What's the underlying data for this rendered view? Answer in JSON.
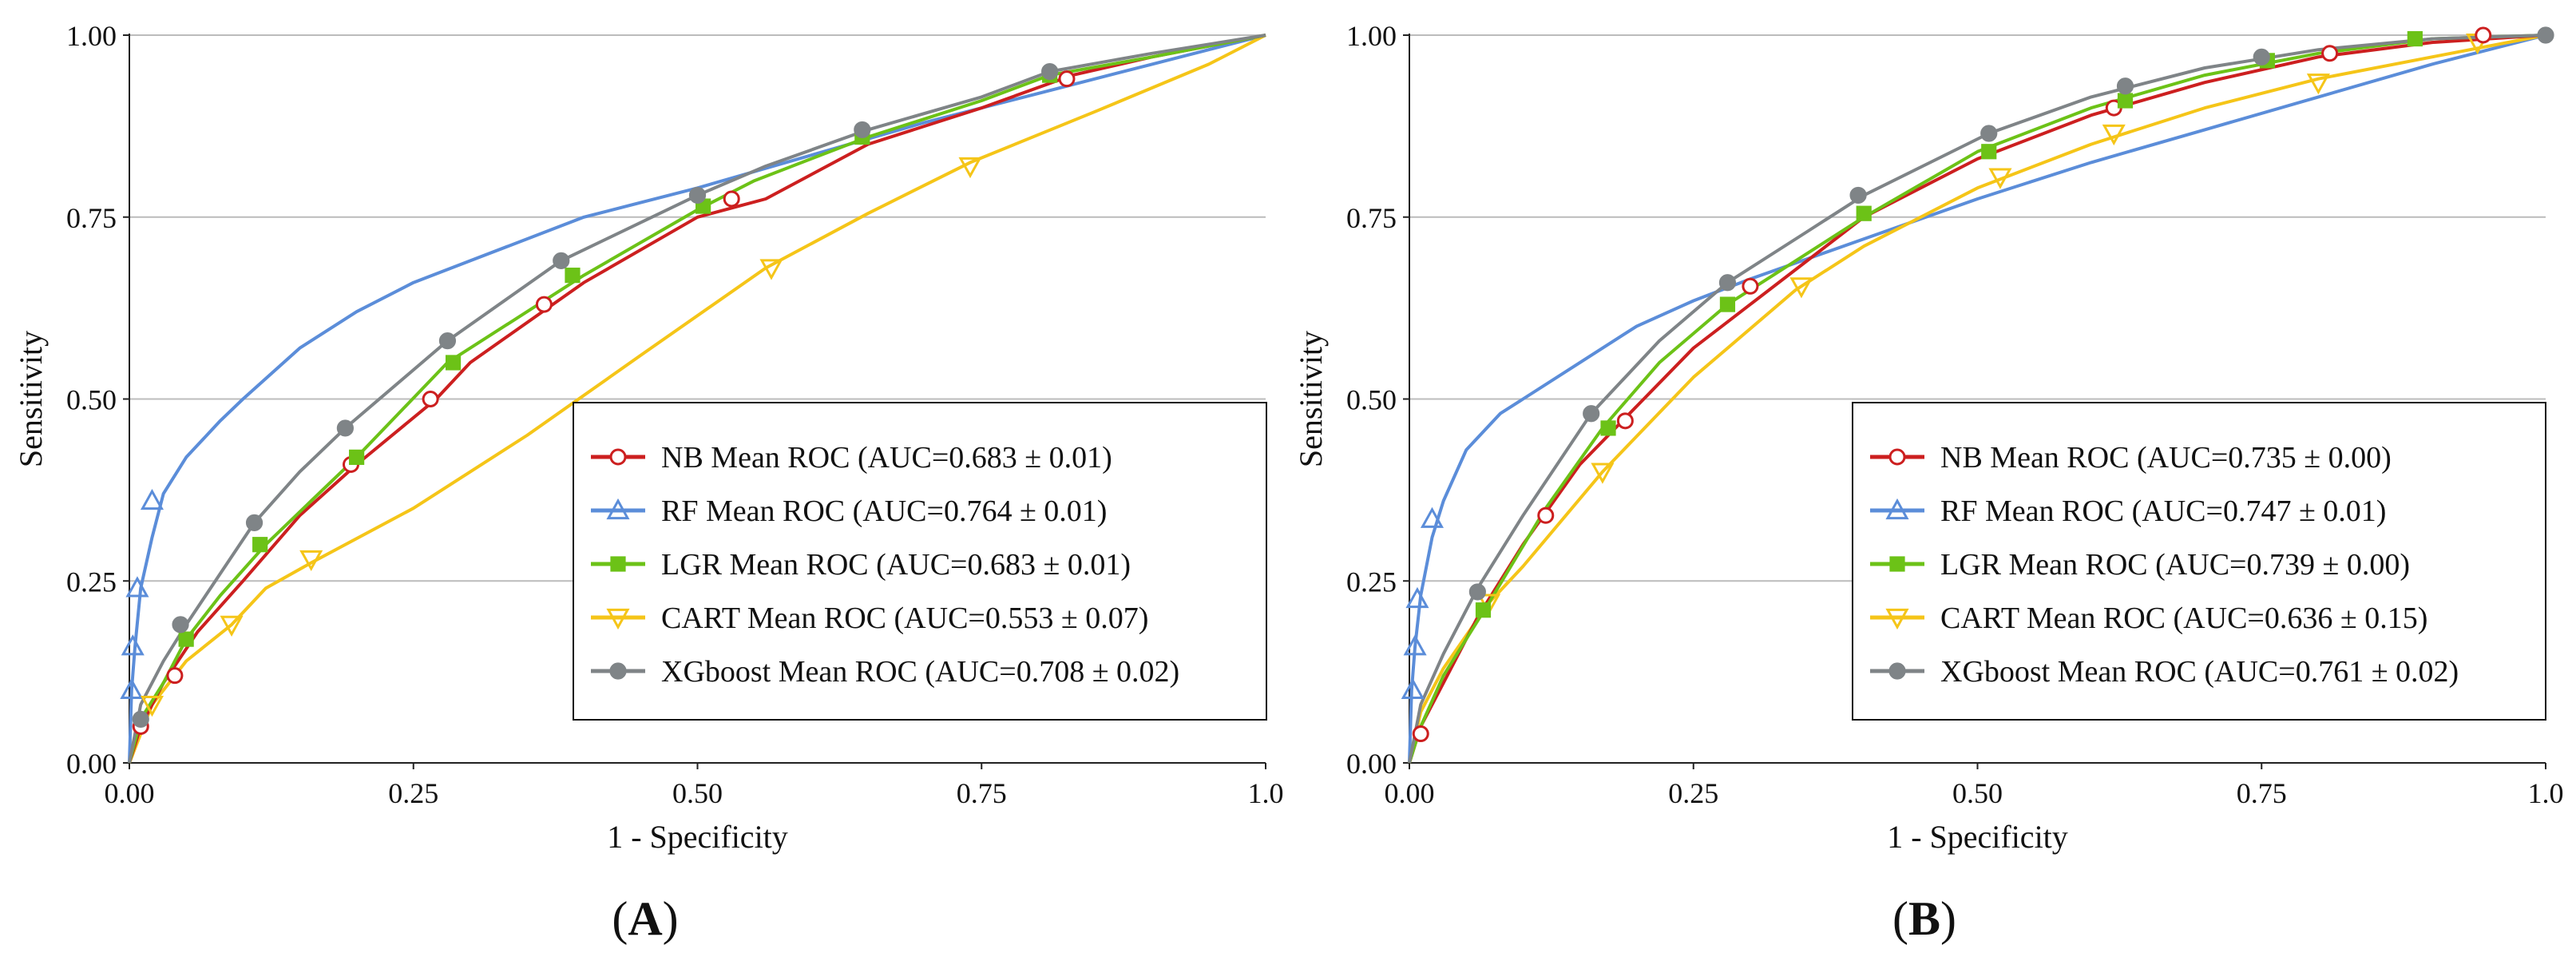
{
  "figure_title": "",
  "chart_data": [
    {
      "type": "line",
      "panel_label": {
        "open": "(",
        "letter": "A",
        "close": ")"
      },
      "xlabel": "1 - Specificity",
      "ylabel": "Sensitivity",
      "xlim": [
        0,
        1
      ],
      "ylim": [
        0,
        1
      ],
      "xticks": [
        "0.00",
        "0.25",
        "0.50",
        "0.75",
        "1.0"
      ],
      "yticks": [
        "0.00",
        "0.25",
        "0.50",
        "0.75",
        "1.00"
      ],
      "grid": "horizontal",
      "legend_position": "bottom-right",
      "series": [
        {
          "name": "NB Mean ROC (AUC=0.683 ± 0.01)",
          "color": "#cc1f1f",
          "marker": "open-circle",
          "x": [
            0,
            0.01,
            0.03,
            0.06,
            0.1,
            0.15,
            0.2,
            0.27,
            0.3,
            0.4,
            0.5,
            0.56,
            0.65,
            0.75,
            0.83,
            0.9,
            1.0
          ],
          "y": [
            0,
            0.05,
            0.11,
            0.18,
            0.25,
            0.34,
            0.41,
            0.5,
            0.55,
            0.66,
            0.75,
            0.775,
            0.85,
            0.9,
            0.945,
            0.97,
            1.0
          ]
        },
        {
          "name": "RF Mean ROC (AUC=0.764 ± 0.01)",
          "color": "#5b8dd9",
          "marker": "open-triangle-up",
          "x": [
            0,
            0.002,
            0.005,
            0.01,
            0.02,
            0.03,
            0.05,
            0.08,
            0.1,
            0.15,
            0.2,
            0.25,
            0.3,
            0.4,
            0.5,
            0.6,
            0.7,
            0.8,
            0.9,
            1.0
          ],
          "y": [
            0,
            0.1,
            0.16,
            0.24,
            0.31,
            0.37,
            0.42,
            0.47,
            0.5,
            0.57,
            0.62,
            0.66,
            0.69,
            0.75,
            0.79,
            0.835,
            0.88,
            0.92,
            0.96,
            1.0
          ]
        },
        {
          "name": "LGR Mean ROC (AUC=0.683 ± 0.01)",
          "color": "#6cc217",
          "marker": "filled-square",
          "x": [
            0,
            0.01,
            0.03,
            0.05,
            0.08,
            0.12,
            0.16,
            0.2,
            0.28,
            0.35,
            0.4,
            0.5,
            0.55,
            0.65,
            0.75,
            0.81,
            0.9,
            1.0
          ],
          "y": [
            0,
            0.06,
            0.11,
            0.17,
            0.23,
            0.3,
            0.36,
            0.42,
            0.55,
            0.62,
            0.67,
            0.76,
            0.8,
            0.86,
            0.91,
            0.945,
            0.97,
            1.0
          ]
        },
        {
          "name": "CART Mean ROC (AUC=0.553 ± 0.07)",
          "color": "#f5c518",
          "marker": "open-triangle-down",
          "x": [
            0,
            0.01,
            0.02,
            0.05,
            0.09,
            0.12,
            0.16,
            0.25,
            0.35,
            0.45,
            0.56,
            0.65,
            0.74,
            0.85,
            0.95,
            1.0
          ],
          "y": [
            0,
            0.04,
            0.08,
            0.14,
            0.19,
            0.24,
            0.275,
            0.35,
            0.45,
            0.56,
            0.68,
            0.755,
            0.825,
            0.895,
            0.96,
            1.0
          ]
        },
        {
          "name": "XGboost Mean ROC (AUC=0.708 ± 0.02)",
          "color": "#7f8487",
          "marker": "filled-circle",
          "x": [
            0,
            0.01,
            0.03,
            0.05,
            0.08,
            0.11,
            0.15,
            0.19,
            0.28,
            0.38,
            0.5,
            0.56,
            0.65,
            0.75,
            0.81,
            0.9,
            1.0
          ],
          "y": [
            0,
            0.08,
            0.14,
            0.19,
            0.26,
            0.33,
            0.4,
            0.46,
            0.58,
            0.69,
            0.78,
            0.82,
            0.87,
            0.915,
            0.95,
            0.975,
            1.0
          ]
        }
      ],
      "marker_points": {
        "NB": [
          [
            0.01,
            0.05
          ],
          [
            0.04,
            0.12
          ],
          [
            0.195,
            0.41
          ],
          [
            0.265,
            0.5
          ],
          [
            0.365,
            0.63
          ],
          [
            0.53,
            0.775
          ],
          [
            0.825,
            0.94
          ]
        ],
        "RF": [
          [
            0.002,
            0.1
          ],
          [
            0.003,
            0.16
          ],
          [
            0.007,
            0.24
          ],
          [
            0.02,
            0.36
          ]
        ],
        "LGR": [
          [
            0.05,
            0.17
          ],
          [
            0.115,
            0.3
          ],
          [
            0.2,
            0.42
          ],
          [
            0.285,
            0.55
          ],
          [
            0.39,
            0.67
          ],
          [
            0.505,
            0.765
          ],
          [
            0.645,
            0.86
          ],
          [
            0.81,
            0.945
          ]
        ],
        "CART": [
          [
            0.02,
            0.08
          ],
          [
            0.09,
            0.19
          ],
          [
            0.16,
            0.28
          ],
          [
            0.565,
            0.68
          ],
          [
            0.74,
            0.82
          ]
        ],
        "XGboost": [
          [
            0.01,
            0.06
          ],
          [
            0.045,
            0.19
          ],
          [
            0.11,
            0.33
          ],
          [
            0.19,
            0.46
          ],
          [
            0.28,
            0.58
          ],
          [
            0.38,
            0.69
          ],
          [
            0.5,
            0.78
          ],
          [
            0.645,
            0.87
          ],
          [
            0.81,
            0.95
          ]
        ]
      }
    },
    {
      "type": "line",
      "panel_label": {
        "open": "(",
        "letter": "B",
        "close": ")"
      },
      "xlabel": "1 - Specificity",
      "ylabel": "Sensitivity",
      "xlim": [
        0,
        1
      ],
      "ylim": [
        0,
        1
      ],
      "xticks": [
        "0.00",
        "0.25",
        "0.50",
        "0.75",
        "1.0"
      ],
      "yticks": [
        "0.00",
        "0.25",
        "0.50",
        "0.75",
        "1.00"
      ],
      "grid": "horizontal",
      "legend_position": "bottom-right",
      "series": [
        {
          "name": "NB Mean ROC (AUC=0.735 ± 0.00)",
          "color": "#cc1f1f",
          "marker": "open-circle",
          "x": [
            0,
            0.01,
            0.03,
            0.06,
            0.1,
            0.15,
            0.2,
            0.25,
            0.3,
            0.4,
            0.5,
            0.6,
            0.7,
            0.8,
            0.9,
            1.0
          ],
          "y": [
            0,
            0.05,
            0.11,
            0.2,
            0.3,
            0.41,
            0.49,
            0.57,
            0.63,
            0.75,
            0.83,
            0.89,
            0.935,
            0.97,
            0.99,
            1.0
          ]
        },
        {
          "name": "RF Mean ROC (AUC=0.747 ± 0.01)",
          "color": "#5b8dd9",
          "marker": "open-triangle-up",
          "x": [
            0,
            0.002,
            0.005,
            0.01,
            0.02,
            0.03,
            0.05,
            0.08,
            0.1,
            0.15,
            0.2,
            0.25,
            0.3,
            0.4,
            0.5,
            0.6,
            0.7,
            0.8,
            0.9,
            1.0
          ],
          "y": [
            0,
            0.1,
            0.16,
            0.23,
            0.31,
            0.36,
            0.43,
            0.48,
            0.5,
            0.55,
            0.6,
            0.635,
            0.665,
            0.72,
            0.775,
            0.825,
            0.87,
            0.915,
            0.96,
            1.0
          ]
        },
        {
          "name": "LGR Mean ROC (AUC=0.739 ± 0.00)",
          "color": "#6cc217",
          "marker": "filled-square",
          "x": [
            0,
            0.01,
            0.03,
            0.07,
            0.12,
            0.17,
            0.22,
            0.28,
            0.35,
            0.4,
            0.5,
            0.6,
            0.7,
            0.8,
            0.9,
            1.0
          ],
          "y": [
            0,
            0.05,
            0.12,
            0.22,
            0.35,
            0.46,
            0.55,
            0.63,
            0.7,
            0.75,
            0.84,
            0.9,
            0.945,
            0.975,
            0.995,
            1.0
          ]
        },
        {
          "name": "CART Mean ROC (AUC=0.636 ± 0.15)",
          "color": "#f5c518",
          "marker": "open-triangle-down",
          "x": [
            0,
            0.01,
            0.03,
            0.07,
            0.1,
            0.17,
            0.25,
            0.34,
            0.4,
            0.5,
            0.6,
            0.7,
            0.8,
            0.9,
            1.0
          ],
          "y": [
            0,
            0.07,
            0.13,
            0.22,
            0.27,
            0.4,
            0.53,
            0.65,
            0.71,
            0.79,
            0.85,
            0.9,
            0.94,
            0.97,
            1.0
          ]
        },
        {
          "name": "XGboost Mean ROC (AUC=0.761 ± 0.02)",
          "color": "#7f8487",
          "marker": "filled-circle",
          "x": [
            0,
            0.01,
            0.03,
            0.06,
            0.1,
            0.16,
            0.22,
            0.28,
            0.35,
            0.4,
            0.51,
            0.6,
            0.7,
            0.8,
            0.9,
            1.0
          ],
          "y": [
            0,
            0.08,
            0.15,
            0.24,
            0.34,
            0.48,
            0.58,
            0.66,
            0.73,
            0.78,
            0.865,
            0.915,
            0.955,
            0.98,
            0.995,
            1.0
          ]
        }
      ],
      "marker_points": {
        "NB": [
          [
            0.01,
            0.04
          ],
          [
            0.12,
            0.34
          ],
          [
            0.19,
            0.47
          ],
          [
            0.3,
            0.655
          ],
          [
            0.62,
            0.9
          ],
          [
            0.81,
            0.975
          ],
          [
            0.945,
            1.0
          ]
        ],
        "RF": [
          [
            0.003,
            0.1
          ],
          [
            0.005,
            0.16
          ],
          [
            0.007,
            0.225
          ],
          [
            0.02,
            0.335
          ]
        ],
        "LGR": [
          [
            0.065,
            0.21
          ],
          [
            0.175,
            0.46
          ],
          [
            0.28,
            0.63
          ],
          [
            0.4,
            0.755
          ],
          [
            0.51,
            0.84
          ],
          [
            0.63,
            0.91
          ],
          [
            0.755,
            0.965
          ],
          [
            0.885,
            0.995
          ]
        ],
        "CART": [
          [
            0.07,
            0.22
          ],
          [
            0.17,
            0.4
          ],
          [
            0.345,
            0.655
          ],
          [
            0.52,
            0.805
          ],
          [
            0.62,
            0.865
          ],
          [
            0.8,
            0.935
          ],
          [
            0.94,
            0.99
          ]
        ],
        "XGboost": [
          [
            0.06,
            0.235
          ],
          [
            0.16,
            0.48
          ],
          [
            0.28,
            0.66
          ],
          [
            0.395,
            0.78
          ],
          [
            0.51,
            0.865
          ],
          [
            0.63,
            0.93
          ],
          [
            0.75,
            0.97
          ],
          [
            1.0,
            1.0
          ]
        ]
      }
    }
  ]
}
